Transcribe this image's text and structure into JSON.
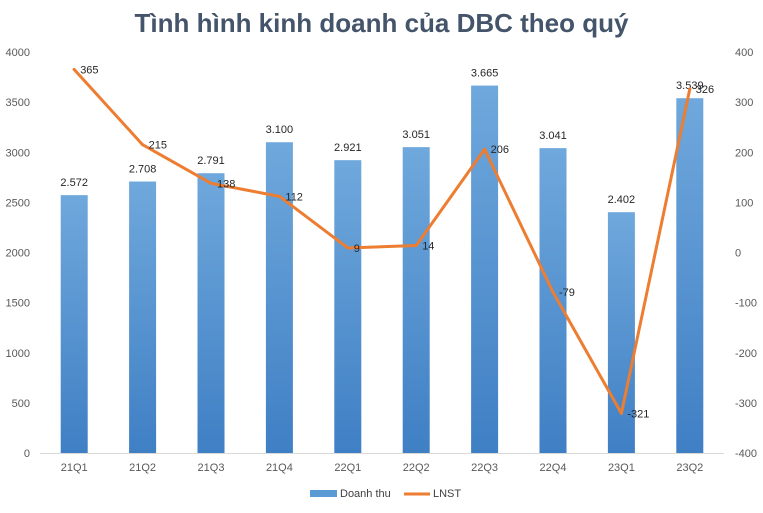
{
  "chart_data": {
    "type": "bar",
    "title": "Tình hình kinh doanh của DBC theo quý",
    "categories": [
      "21Q1",
      "21Q2",
      "21Q3",
      "21Q4",
      "22Q1",
      "22Q2",
      "22Q3",
      "22Q4",
      "23Q1",
      "23Q2"
    ],
    "series": [
      {
        "name": "Doanh thu",
        "type": "bar",
        "axis": "left",
        "color": "#5b9bd5",
        "values": [
          2572,
          2708,
          2791,
          3100,
          2921,
          3051,
          3665,
          3041,
          2402,
          3539
        ],
        "labels": [
          "2.572",
          "2.708",
          "2.791",
          "3.100",
          "2.921",
          "3.051",
          "3.665",
          "3.041",
          "2.402",
          "3.539"
        ]
      },
      {
        "name": "LNST",
        "type": "line",
        "axis": "right",
        "color": "#ed7d31",
        "values": [
          365,
          215,
          138,
          112,
          9,
          14,
          206,
          -79,
          -321,
          326
        ],
        "labels": [
          "365",
          "215",
          "138",
          "112",
          "9",
          "14",
          "206",
          "-79",
          "-321",
          "326"
        ]
      }
    ],
    "ylim_left": [
      0,
      4000
    ],
    "yticks_left": [
      "0",
      "500",
      "1000",
      "1500",
      "2000",
      "2500",
      "3000",
      "3500",
      "4000"
    ],
    "ylim_right": [
      -400,
      400
    ],
    "yticks_right": [
      "-400",
      "-300",
      "-200",
      "-100",
      "0",
      "100",
      "200",
      "300",
      "400"
    ],
    "grid": false,
    "legend": "bottom"
  }
}
